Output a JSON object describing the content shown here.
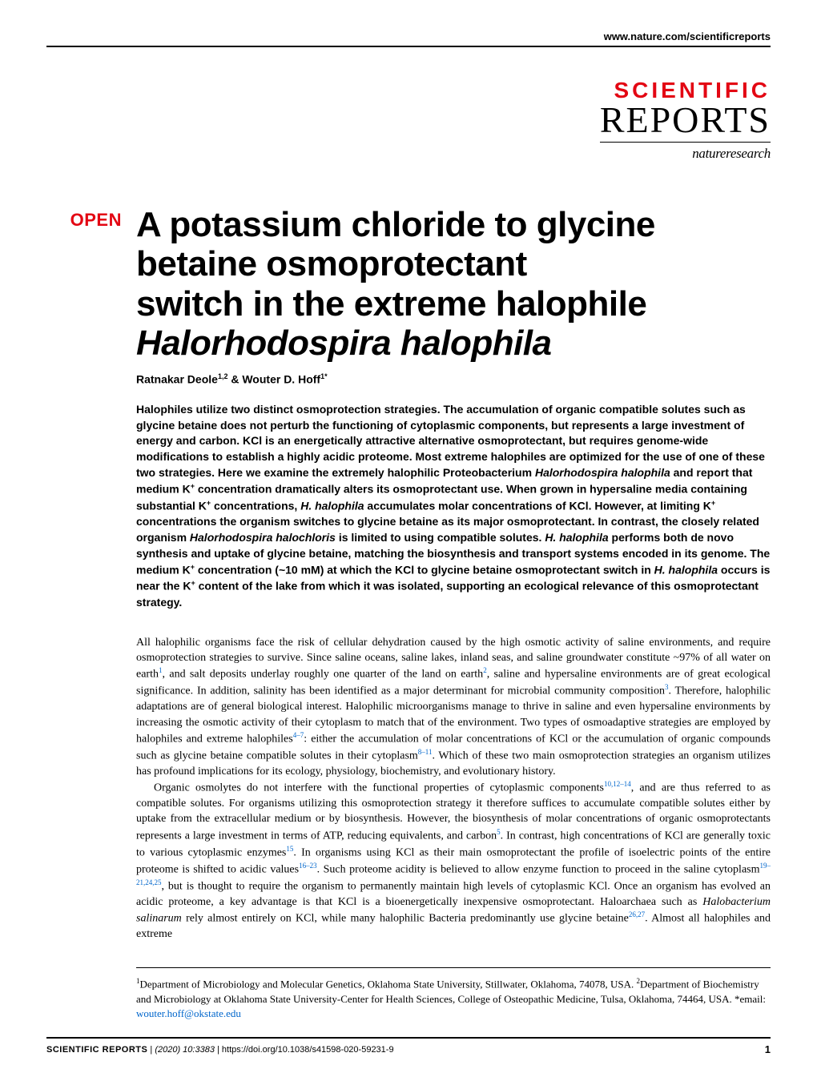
{
  "header": {
    "url": "www.nature.com/scientificreports"
  },
  "logo": {
    "line1": "SCIENTIFIC",
    "line2": "REPORTS",
    "line3": "natureresearch"
  },
  "open_label": "OPEN",
  "title": {
    "line1": "A potassium chloride to glycine",
    "line2": "betaine osmoprotectant",
    "line3": "switch in the extreme halophile",
    "line4_italic": "Halorhodospira halophila"
  },
  "authors": {
    "text": "Ratnakar Deole",
    "aff1": "1,2",
    "amp": " & Wouter D. Hoff",
    "aff2": "1*"
  },
  "abstract": {
    "p1a": "Halophiles utilize two distinct osmoprotection strategies. The accumulation of organic compatible solutes such as glycine betaine does not perturb the functioning of cytoplasmic components, but represents a large investment of energy and carbon. KCl is an energetically attractive alternative osmoprotectant, but requires genome-wide modifications to establish a highly acidic proteome. Most extreme halophiles are optimized for the use of one of these two strategies. Here we examine the extremely halophilic Proteobacterium ",
    "p1b_italic": "Halorhodospira halophila",
    "p1c": " and report that medium K",
    "p1d": " concentration dramatically alters its osmoprotectant use. When grown in hypersaline media containing substantial K",
    "p1e": " concentrations, ",
    "p1f_italic": "H. halophila",
    "p1g": " accumulates molar concentrations of KCl. However, at limiting K",
    "p1h": " concentrations the organism switches to glycine betaine as its major osmoprotectant. In contrast, the closely related organism ",
    "p1i_italic": "Halorhodospira halochloris",
    "p1j": " is limited to using compatible solutes. ",
    "p1k_italic": "H. halophila",
    "p1l": " performs both de novo synthesis and uptake of glycine betaine, matching the biosynthesis and transport systems encoded in its genome. The medium K",
    "p1m": " concentration (~10 mM) at which the KCl to glycine betaine osmoprotectant switch in ",
    "p1n_italic": "H. halophila",
    "p1o": " occurs is near the K",
    "p1p": " content of the lake from which it was isolated, supporting an ecological relevance of this osmoprotectant strategy."
  },
  "body": {
    "p1a": "All halophilic organisms face the risk of cellular dehydration caused by the high osmotic activity of saline environments, and require osmoprotection strategies to survive. Since saline oceans, saline lakes, inland seas, and saline groundwater constitute ~97% of all water on earth",
    "p1r1": "1",
    "p1b": ", and salt deposits underlay roughly one quarter of the land on earth",
    "p1r2": "2",
    "p1c": ", saline and hypersaline environments are of great ecological significance. In addition, salinity has been identified as a major determinant for microbial community composition",
    "p1r3": "3",
    "p1d": ". Therefore, halophilic adaptations are of general biological interest. Halophilic microorganisms manage to thrive in saline and even hypersaline environments by increasing the osmotic activity of their cytoplasm to match that of the environment. Two types of osmoadaptive strategies are employed by halophiles and extreme halophiles",
    "p1r4": "4–7",
    "p1e": ": either the accumulation of molar concentrations of KCl or the accumulation of organic compounds such as glycine betaine compatible solutes in their cytoplasm",
    "p1r5": "8–11",
    "p1f": ". Which of these two main osmoprotection strategies an organism utilizes has profound implications for its ecology, physiology, biochemistry, and evolutionary history.",
    "p2a": "Organic osmolytes do not interfere with the functional properties of cytoplasmic components",
    "p2r1": "10,12–14",
    "p2b": ", and are thus referred to as compatible solutes. For organisms utilizing this osmoprotection strategy it therefore suffices to accumulate compatible solutes either by uptake from the extracellular medium or by biosynthesis. However, the biosynthesis of molar concentrations of organic osmoprotectants represents a large investment in terms of ATP, reducing equivalents, and carbon",
    "p2r2": "5",
    "p2c": ". In contrast, high concentrations of KCl are generally toxic to various cytoplasmic enzymes",
    "p2r3": "15",
    "p2d": ". In organisms using KCl as their main osmoprotectant the profile of isoelectric points of the entire proteome is shifted to acidic values",
    "p2r4": "16–23",
    "p2e": ". Such proteome acidity is believed to allow enzyme function to proceed in the saline cytoplasm",
    "p2r5": "19–21,24,25",
    "p2f": ", but is thought to require the organism to permanently maintain high levels of cytoplasmic KCl. Once an organism has evolved an acidic proteome, a key advantage is that KCl is a bioenergetically inexpensive osmoprotectant. Haloarchaea such as ",
    "p2g_italic": "Halobacterium salinarum",
    "p2h": " rely almost entirely on KCl, while many halophilic Bacteria predominantly use glycine betaine",
    "p2r6": "26,27",
    "p2i": ". Almost all halophiles and extreme"
  },
  "affiliations": {
    "aff1_sup": "1",
    "aff1": "Department of Microbiology and Molecular Genetics, Oklahoma State University, Stillwater, Oklahoma, 74078, USA. ",
    "aff2_sup": "2",
    "aff2": "Department of Biochemistry and Microbiology at Oklahoma State University-Center for Health Sciences, College of Osteopathic Medicine, Tulsa, Oklahoma, 74464, USA. *email: ",
    "email": "wouter.hoff@okstate.edu"
  },
  "footer": {
    "journal": "SCIENTIFIC REPORTS",
    "sep": " |         ",
    "citation_italic": "(2020) 10:3383 ",
    "doi": " | https://doi.org/10.1038/s41598-020-59231-9",
    "page": "1"
  },
  "colors": {
    "red": "#e30613",
    "blue": "#0066cc",
    "black": "#000000",
    "white": "#ffffff"
  }
}
